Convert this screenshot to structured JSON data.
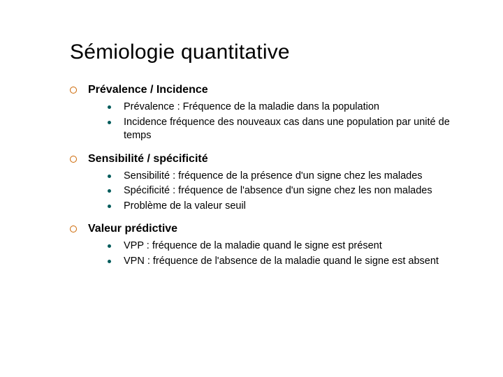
{
  "title": "Sémiologie quantitative",
  "sections": [
    {
      "label": "Prévalence / Incidence",
      "items": [
        "Prévalence : Fréquence de la maladie dans la population",
        "Incidence fréquence des nouveaux cas dans une population par unité de temps"
      ]
    },
    {
      "label": "Sensibilité / spécificité",
      "items": [
        "Sensibilité : fréquence de la présence d'un signe chez les malades",
        "Spécificité : fréquence de l'absence d'un signe chez les non malades",
        "Problème de la valeur seuil"
      ]
    },
    {
      "label": "Valeur prédictive",
      "items": [
        "VPP : fréquence de la maladie quand le signe est présent",
        "VPN : fréquence de l'absence de la maladie quand le signe est absent"
      ]
    }
  ],
  "style": {
    "title_fontsize": 30,
    "title_color": "#000000",
    "section_fontsize": 16,
    "section_fontweight": 700,
    "sub_fontsize": 14.5,
    "outer_bullet_border": "#cc6600",
    "inner_bullet_fill": "#005b5b",
    "background": "#ffffff",
    "slide_width": 720,
    "slide_height": 540
  }
}
